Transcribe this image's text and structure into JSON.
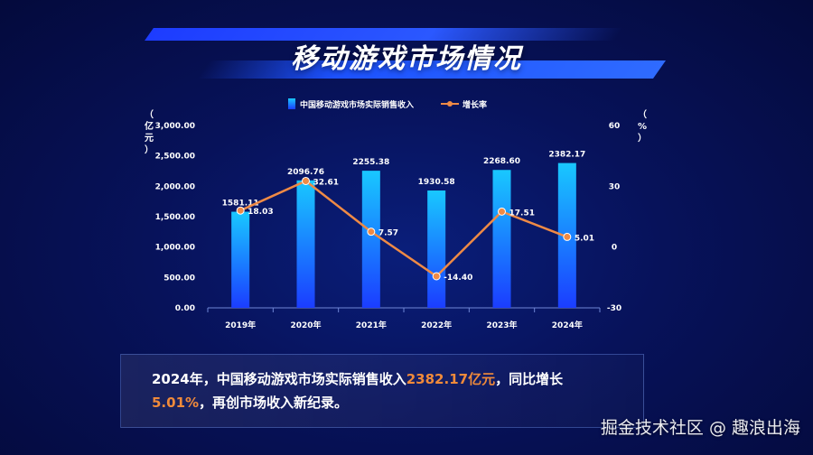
{
  "title": "移动游戏市场情况",
  "chart_data": {
    "type": "bar",
    "categories": [
      "2019年",
      "2020年",
      "2021年",
      "2022年",
      "2023年",
      "2024年"
    ],
    "series": [
      {
        "name": "中国移动游戏市场实际销售收入",
        "type": "bar",
        "axis": "left",
        "values": [
          1581.11,
          2096.76,
          2255.38,
          1930.58,
          2268.6,
          2382.17
        ],
        "labels": [
          "1581.11",
          "2096.76",
          "2255.38",
          "1930.58",
          "2268.60",
          "2382.17"
        ]
      },
      {
        "name": "增长率",
        "type": "line",
        "axis": "right",
        "values": [
          18.03,
          32.61,
          7.57,
          -14.4,
          17.51,
          5.01
        ],
        "labels": [
          "18.03",
          "32.61",
          "7.57",
          "-14.40",
          "17.51",
          "5.01"
        ]
      }
    ],
    "y_left": {
      "label": "（亿元）",
      "ylim": [
        0,
        3000
      ],
      "ticks": [
        "0.00",
        "500.00",
        "1,000.00",
        "1,500.00",
        "2,000.00",
        "2,500.00",
        "3,000.00"
      ],
      "tick_values": [
        0,
        500,
        1000,
        1500,
        2000,
        2500,
        3000
      ]
    },
    "y_right": {
      "label": "（%）",
      "ylim": [
        -30,
        60
      ],
      "ticks": [
        "-30",
        "0",
        "30",
        "60"
      ],
      "tick_values": [
        -30,
        0,
        30,
        60
      ]
    },
    "legend_position": "top-center",
    "grid": false,
    "colors": {
      "bar_top": "#19c8ff",
      "bar_bottom": "#1b3dff",
      "line": "#ef8a45",
      "marker": "#ef8a45"
    }
  },
  "summary": {
    "part1": "2024年，中国移动游戏市场实际销售收入",
    "hl1": "2382.17亿元",
    "part2": "，同比增长",
    "hl2": "5.01%",
    "part3": "，再创市场收入新纪录。"
  },
  "watermark": "掘金技术社区 @ 趣浪出海"
}
